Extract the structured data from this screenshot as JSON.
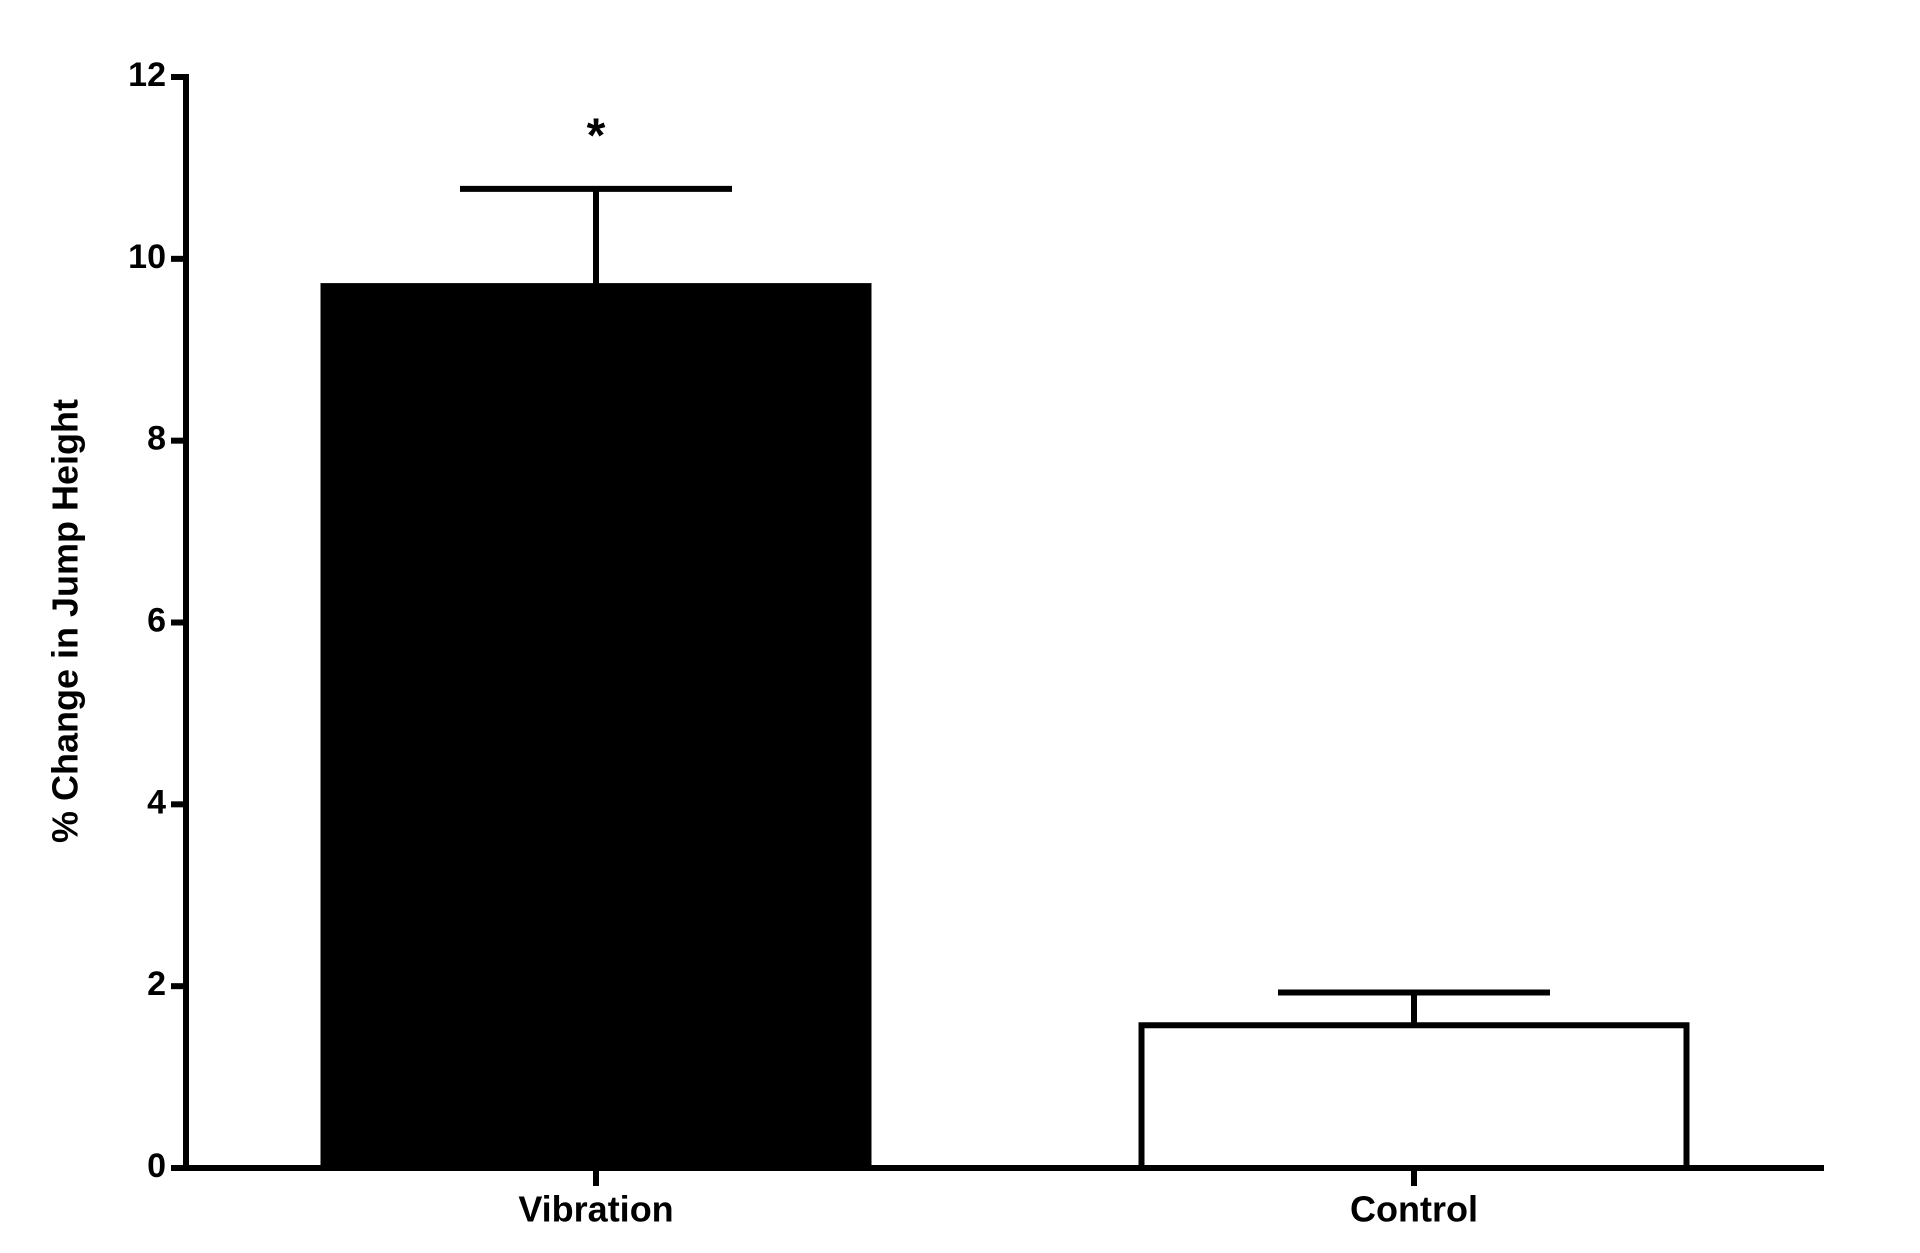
{
  "chart_data": {
    "type": "bar",
    "ylabel": "% Change in Jump Height",
    "categories": [
      "Vibration",
      "Control"
    ],
    "values": [
      9.7,
      1.57
    ],
    "errors": [
      1.07,
      0.36
    ],
    "significance": [
      "*",
      null
    ],
    "colors": [
      "#000000",
      "#ffffff"
    ],
    "edgecolor": "#000000",
    "ylim": [
      0,
      12
    ],
    "yticks": [
      0,
      2,
      4,
      6,
      8,
      10,
      12
    ],
    "grid": false
  }
}
